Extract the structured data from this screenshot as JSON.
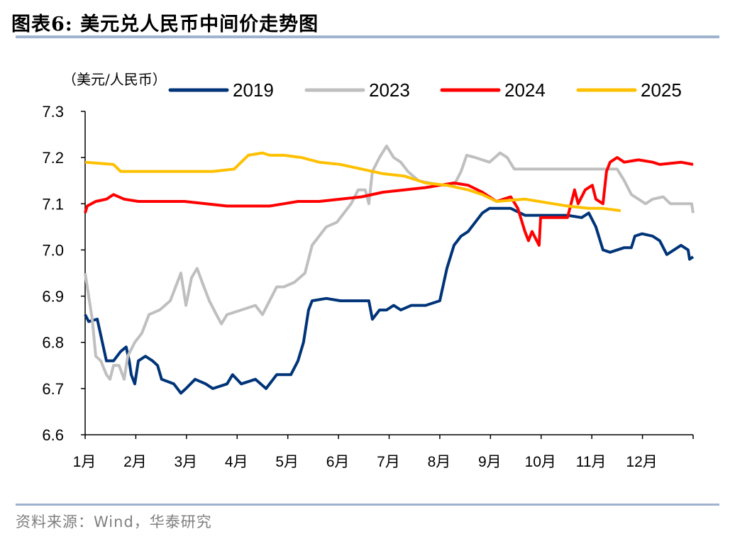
{
  "title": "图表6:  美元兑人民币中间价走势图",
  "source": "资料来源：Wind，华泰研究",
  "chart_data": {
    "type": "line",
    "title": "美元兑人民币中间价走势图",
    "ylabel": "（美元/人民币）",
    "xlabel": "",
    "ylim": [
      6.6,
      7.3
    ],
    "yticks": [
      6.6,
      6.7,
      6.8,
      6.9,
      7.0,
      7.1,
      7.2,
      7.3
    ],
    "ytick_labels": [
      "6.6",
      "6.7",
      "6.8",
      "6.9",
      "7.0",
      "7.1",
      "7.2",
      "7.3"
    ],
    "xlim": [
      0,
      12
    ],
    "xtick_labels": [
      "1月",
      "2月",
      "3月",
      "4月",
      "5月",
      "6月",
      "7月",
      "8月",
      "9月",
      "10月",
      "11月",
      "12月"
    ],
    "grid": false,
    "legend_position": "top",
    "series": [
      {
        "name": "2019",
        "color": "#003478",
        "points": [
          [
            0,
            6.86
          ],
          [
            0.07,
            6.845
          ],
          [
            0.24,
            6.85
          ],
          [
            0.42,
            6.76
          ],
          [
            0.56,
            6.76
          ],
          [
            0.7,
            6.78
          ],
          [
            0.81,
            6.79
          ],
          [
            0.87,
            6.76
          ],
          [
            0.91,
            6.73
          ],
          [
            0.98,
            6.71
          ],
          [
            1.05,
            6.76
          ],
          [
            1.19,
            6.77
          ],
          [
            1.33,
            6.76
          ],
          [
            1.43,
            6.75
          ],
          [
            1.51,
            6.72
          ],
          [
            1.75,
            6.71
          ],
          [
            1.89,
            6.69
          ],
          [
            1.99,
            6.7
          ],
          [
            2.17,
            6.72
          ],
          [
            2.38,
            6.71
          ],
          [
            2.52,
            6.7
          ],
          [
            2.8,
            6.71
          ],
          [
            2.91,
            6.73
          ],
          [
            3.08,
            6.71
          ],
          [
            3.36,
            6.72
          ],
          [
            3.57,
            6.7
          ],
          [
            3.78,
            6.73
          ],
          [
            4.06,
            6.73
          ],
          [
            4.2,
            6.76
          ],
          [
            4.31,
            6.8
          ],
          [
            4.41,
            6.87
          ],
          [
            4.48,
            6.89
          ],
          [
            4.76,
            6.895
          ],
          [
            5.04,
            6.89
          ],
          [
            5.6,
            6.89
          ],
          [
            5.67,
            6.85
          ],
          [
            5.81,
            6.87
          ],
          [
            5.95,
            6.87
          ],
          [
            6.09,
            6.88
          ],
          [
            6.23,
            6.87
          ],
          [
            6.44,
            6.88
          ],
          [
            6.72,
            6.88
          ],
          [
            7.0,
            6.89
          ],
          [
            7.14,
            6.96
          ],
          [
            7.28,
            7.01
          ],
          [
            7.42,
            7.03
          ],
          [
            7.56,
            7.04
          ],
          [
            7.7,
            7.06
          ],
          [
            7.84,
            7.08
          ],
          [
            7.98,
            7.09
          ],
          [
            8.12,
            7.09
          ],
          [
            8.4,
            7.09
          ],
          [
            8.68,
            7.075
          ],
          [
            9.52,
            7.075
          ],
          [
            9.8,
            7.07
          ],
          [
            9.94,
            7.08
          ],
          [
            10.08,
            7.05
          ],
          [
            10.22,
            7.0
          ],
          [
            10.36,
            6.995
          ],
          [
            10.64,
            7.005
          ],
          [
            10.78,
            7.005
          ],
          [
            10.85,
            7.03
          ],
          [
            10.99,
            7.035
          ],
          [
            11.2,
            7.03
          ],
          [
            11.34,
            7.02
          ],
          [
            11.48,
            6.99
          ],
          [
            11.62,
            7.0
          ],
          [
            11.76,
            7.01
          ],
          [
            11.9,
            7.0
          ],
          [
            11.93,
            6.98
          ],
          [
            12.0,
            6.985
          ]
        ]
      },
      {
        "name": "2023",
        "color": "#bfbfbf",
        "points": [
          [
            0,
            6.95
          ],
          [
            0.07,
            6.9
          ],
          [
            0.14,
            6.85
          ],
          [
            0.21,
            6.77
          ],
          [
            0.31,
            6.76
          ],
          [
            0.42,
            6.73
          ],
          [
            0.49,
            6.72
          ],
          [
            0.56,
            6.75
          ],
          [
            0.67,
            6.75
          ],
          [
            0.77,
            6.72
          ],
          [
            0.84,
            6.77
          ],
          [
            0.98,
            6.8
          ],
          [
            1.12,
            6.82
          ],
          [
            1.26,
            6.86
          ],
          [
            1.47,
            6.87
          ],
          [
            1.68,
            6.89
          ],
          [
            1.75,
            6.91
          ],
          [
            1.89,
            6.95
          ],
          [
            1.99,
            6.88
          ],
          [
            2.1,
            6.94
          ],
          [
            2.21,
            6.96
          ],
          [
            2.31,
            6.93
          ],
          [
            2.45,
            6.89
          ],
          [
            2.59,
            6.86
          ],
          [
            2.69,
            6.84
          ],
          [
            2.8,
            6.86
          ],
          [
            3.08,
            6.87
          ],
          [
            3.36,
            6.88
          ],
          [
            3.5,
            6.86
          ],
          [
            3.64,
            6.89
          ],
          [
            3.78,
            6.92
          ],
          [
            3.92,
            6.92
          ],
          [
            4.13,
            6.93
          ],
          [
            4.34,
            6.95
          ],
          [
            4.48,
            7.01
          ],
          [
            4.62,
            7.03
          ],
          [
            4.76,
            7.05
          ],
          [
            4.97,
            7.06
          ],
          [
            5.11,
            7.08
          ],
          [
            5.25,
            7.1
          ],
          [
            5.39,
            7.13
          ],
          [
            5.53,
            7.13
          ],
          [
            5.6,
            7.1
          ],
          [
            5.67,
            7.17
          ],
          [
            5.81,
            7.2
          ],
          [
            5.95,
            7.225
          ],
          [
            6.09,
            7.2
          ],
          [
            6.23,
            7.19
          ],
          [
            6.37,
            7.17
          ],
          [
            6.58,
            7.15
          ],
          [
            6.79,
            7.145
          ],
          [
            7.07,
            7.14
          ],
          [
            7.28,
            7.14
          ],
          [
            7.42,
            7.17
          ],
          [
            7.53,
            7.205
          ],
          [
            7.7,
            7.2
          ],
          [
            7.98,
            7.19
          ],
          [
            8.19,
            7.21
          ],
          [
            8.33,
            7.2
          ],
          [
            8.47,
            7.175
          ],
          [
            9.52,
            7.175
          ],
          [
            10.5,
            7.175
          ],
          [
            10.64,
            7.15
          ],
          [
            10.78,
            7.12
          ],
          [
            10.92,
            7.11
          ],
          [
            11.06,
            7.1
          ],
          [
            11.2,
            7.11
          ],
          [
            11.41,
            7.115
          ],
          [
            11.55,
            7.1
          ],
          [
            11.76,
            7.1
          ],
          [
            11.97,
            7.1
          ],
          [
            12.0,
            7.08
          ]
        ]
      },
      {
        "name": "2024",
        "color": "#ff0000",
        "points": [
          [
            0,
            7.08
          ],
          [
            0.04,
            7.095
          ],
          [
            0.21,
            7.105
          ],
          [
            0.42,
            7.11
          ],
          [
            0.56,
            7.12
          ],
          [
            0.77,
            7.11
          ],
          [
            1.05,
            7.105
          ],
          [
            1.4,
            7.105
          ],
          [
            1.96,
            7.105
          ],
          [
            2.38,
            7.1
          ],
          [
            2.8,
            7.095
          ],
          [
            3.64,
            7.095
          ],
          [
            3.92,
            7.1
          ],
          [
            4.2,
            7.105
          ],
          [
            4.62,
            7.105
          ],
          [
            5.04,
            7.11
          ],
          [
            5.46,
            7.115
          ],
          [
            5.88,
            7.125
          ],
          [
            6.3,
            7.13
          ],
          [
            6.72,
            7.135
          ],
          [
            7.0,
            7.14
          ],
          [
            7.28,
            7.145
          ],
          [
            7.56,
            7.14
          ],
          [
            7.84,
            7.125
          ],
          [
            8.12,
            7.105
          ],
          [
            8.4,
            7.115
          ],
          [
            8.54,
            7.09
          ],
          [
            8.68,
            7.04
          ],
          [
            8.75,
            7.02
          ],
          [
            8.82,
            7.04
          ],
          [
            8.96,
            7.01
          ],
          [
            8.99,
            7.07
          ],
          [
            9.24,
            7.07
          ],
          [
            9.52,
            7.07
          ],
          [
            9.59,
            7.1
          ],
          [
            9.66,
            7.13
          ],
          [
            9.73,
            7.1
          ],
          [
            9.87,
            7.13
          ],
          [
            10.01,
            7.14
          ],
          [
            10.08,
            7.11
          ],
          [
            10.22,
            7.1
          ],
          [
            10.29,
            7.17
          ],
          [
            10.36,
            7.19
          ],
          [
            10.5,
            7.2
          ],
          [
            10.64,
            7.19
          ],
          [
            10.92,
            7.195
          ],
          [
            11.2,
            7.19
          ],
          [
            11.34,
            7.185
          ],
          [
            11.76,
            7.19
          ],
          [
            12.0,
            7.185
          ]
        ]
      },
      {
        "name": "2025",
        "color": "#ffc000",
        "points": [
          [
            0,
            7.19
          ],
          [
            0.56,
            7.185
          ],
          [
            0.7,
            7.17
          ],
          [
            1.12,
            7.17
          ],
          [
            1.68,
            7.17
          ],
          [
            2.24,
            7.17
          ],
          [
            2.52,
            7.17
          ],
          [
            2.94,
            7.175
          ],
          [
            3.08,
            7.19
          ],
          [
            3.22,
            7.205
          ],
          [
            3.5,
            7.21
          ],
          [
            3.64,
            7.205
          ],
          [
            3.92,
            7.205
          ],
          [
            4.27,
            7.2
          ],
          [
            4.62,
            7.19
          ],
          [
            5.04,
            7.185
          ],
          [
            5.46,
            7.175
          ],
          [
            5.88,
            7.165
          ],
          [
            6.3,
            7.16
          ],
          [
            6.72,
            7.145
          ],
          [
            7.14,
            7.14
          ],
          [
            7.56,
            7.13
          ],
          [
            7.84,
            7.12
          ],
          [
            8.12,
            7.105
          ],
          [
            8.68,
            7.11
          ],
          [
            8.96,
            7.105
          ],
          [
            9.24,
            7.1
          ],
          [
            9.52,
            7.095
          ],
          [
            9.94,
            7.09
          ],
          [
            10.22,
            7.09
          ],
          [
            10.57,
            7.085
          ]
        ]
      }
    ]
  }
}
